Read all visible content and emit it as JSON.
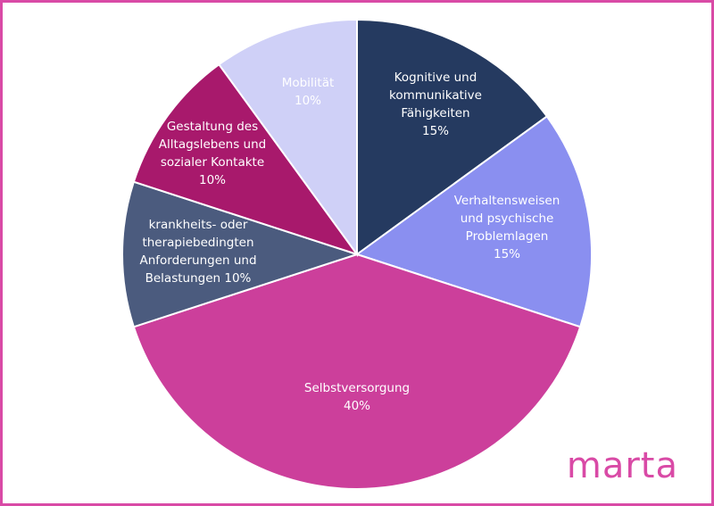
{
  "chart_data": {
    "type": "pie",
    "categories": [
      "Kognitive und kommunikative Fähigkeiten",
      "Verhaltensweisen und psychische Problemlagen",
      "Selbstversorgung",
      "krankheits- oder therapiebedingten Anforderungen und Belastungen",
      "Gestaltung des Alltagslebens und sozialer Kontakte",
      "Mobilität"
    ],
    "values": [
      15,
      15,
      40,
      10,
      10,
      10
    ],
    "value_labels": [
      "15%",
      "15%",
      "40%",
      "10%",
      "10%",
      "10%"
    ],
    "colors": [
      "#253a60",
      "#8a8ff0",
      "#cc3f9b",
      "#4b5b7e",
      "#a8196c",
      "#cfd0f7"
    ]
  },
  "logo": "marta"
}
